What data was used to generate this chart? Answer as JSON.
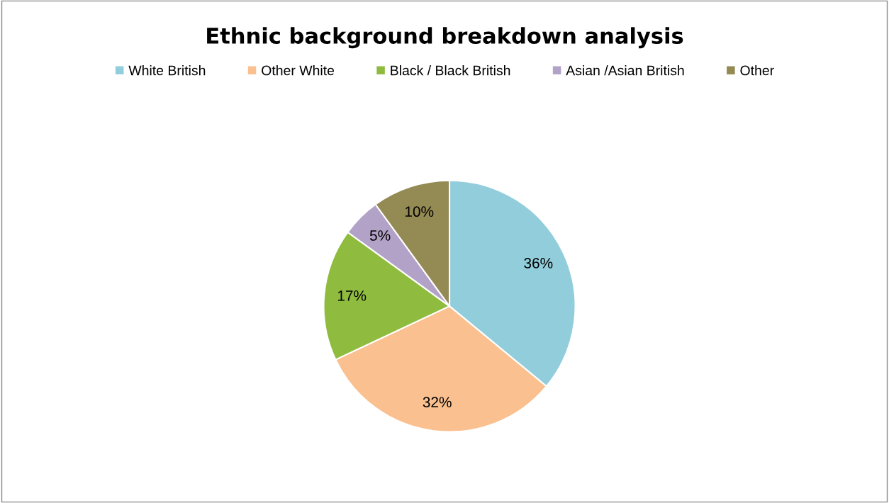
{
  "chart_data": {
    "type": "pie",
    "title": "Ethnic background breakdown analysis",
    "categories": [
      "White British",
      "Other White",
      "Black / Black British",
      "Asian /Asian British",
      "Other"
    ],
    "values": [
      36,
      32,
      17,
      5,
      10
    ],
    "value_labels": [
      "36%",
      "32%",
      "17%",
      "5%",
      "10%"
    ],
    "colors": [
      "#92cddc",
      "#fac090",
      "#8fbc3f",
      "#b3a2c7",
      "#948a54"
    ],
    "legend": "top"
  }
}
